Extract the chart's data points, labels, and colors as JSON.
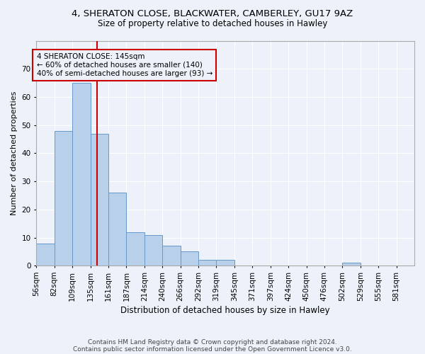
{
  "title1": "4, SHERATON CLOSE, BLACKWATER, CAMBERLEY, GU17 9AZ",
  "title2": "Size of property relative to detached houses in Hawley",
  "xlabel": "Distribution of detached houses by size in Hawley",
  "ylabel": "Number of detached properties",
  "categories": [
    "56sqm",
    "82sqm",
    "109sqm",
    "135sqm",
    "161sqm",
    "187sqm",
    "214sqm",
    "240sqm",
    "266sqm",
    "292sqm",
    "319sqm",
    "345sqm",
    "371sqm",
    "397sqm",
    "424sqm",
    "450sqm",
    "476sqm",
    "502sqm",
    "529sqm",
    "555sqm",
    "581sqm"
  ],
  "bar_color": "#b8d0ea",
  "bar_edge_color": "#6699cc",
  "vline_x": 3,
  "vline_color": "#cc0000",
  "annotation_text": "4 SHERATON CLOSE: 145sqm\n← 60% of detached houses are smaller (140)\n40% of semi-detached houses are larger (93) →",
  "annotation_box_color": "#cc0000",
  "background_color": "#edf2fa",
  "grid_color": "#ffffff",
  "footer1": "Contains HM Land Registry data © Crown copyright and database right 2024.",
  "footer2": "Contains public sector information licensed under the Open Government Licence v3.0.",
  "ylim": [
    0,
    80
  ],
  "yticks": [
    0,
    10,
    20,
    30,
    40,
    50,
    60,
    70,
    80
  ],
  "bar_values": [
    8,
    48,
    65,
    47,
    26,
    12,
    11,
    7,
    5,
    2,
    2,
    0,
    0,
    0,
    0,
    0,
    0,
    1,
    0,
    0,
    0
  ]
}
